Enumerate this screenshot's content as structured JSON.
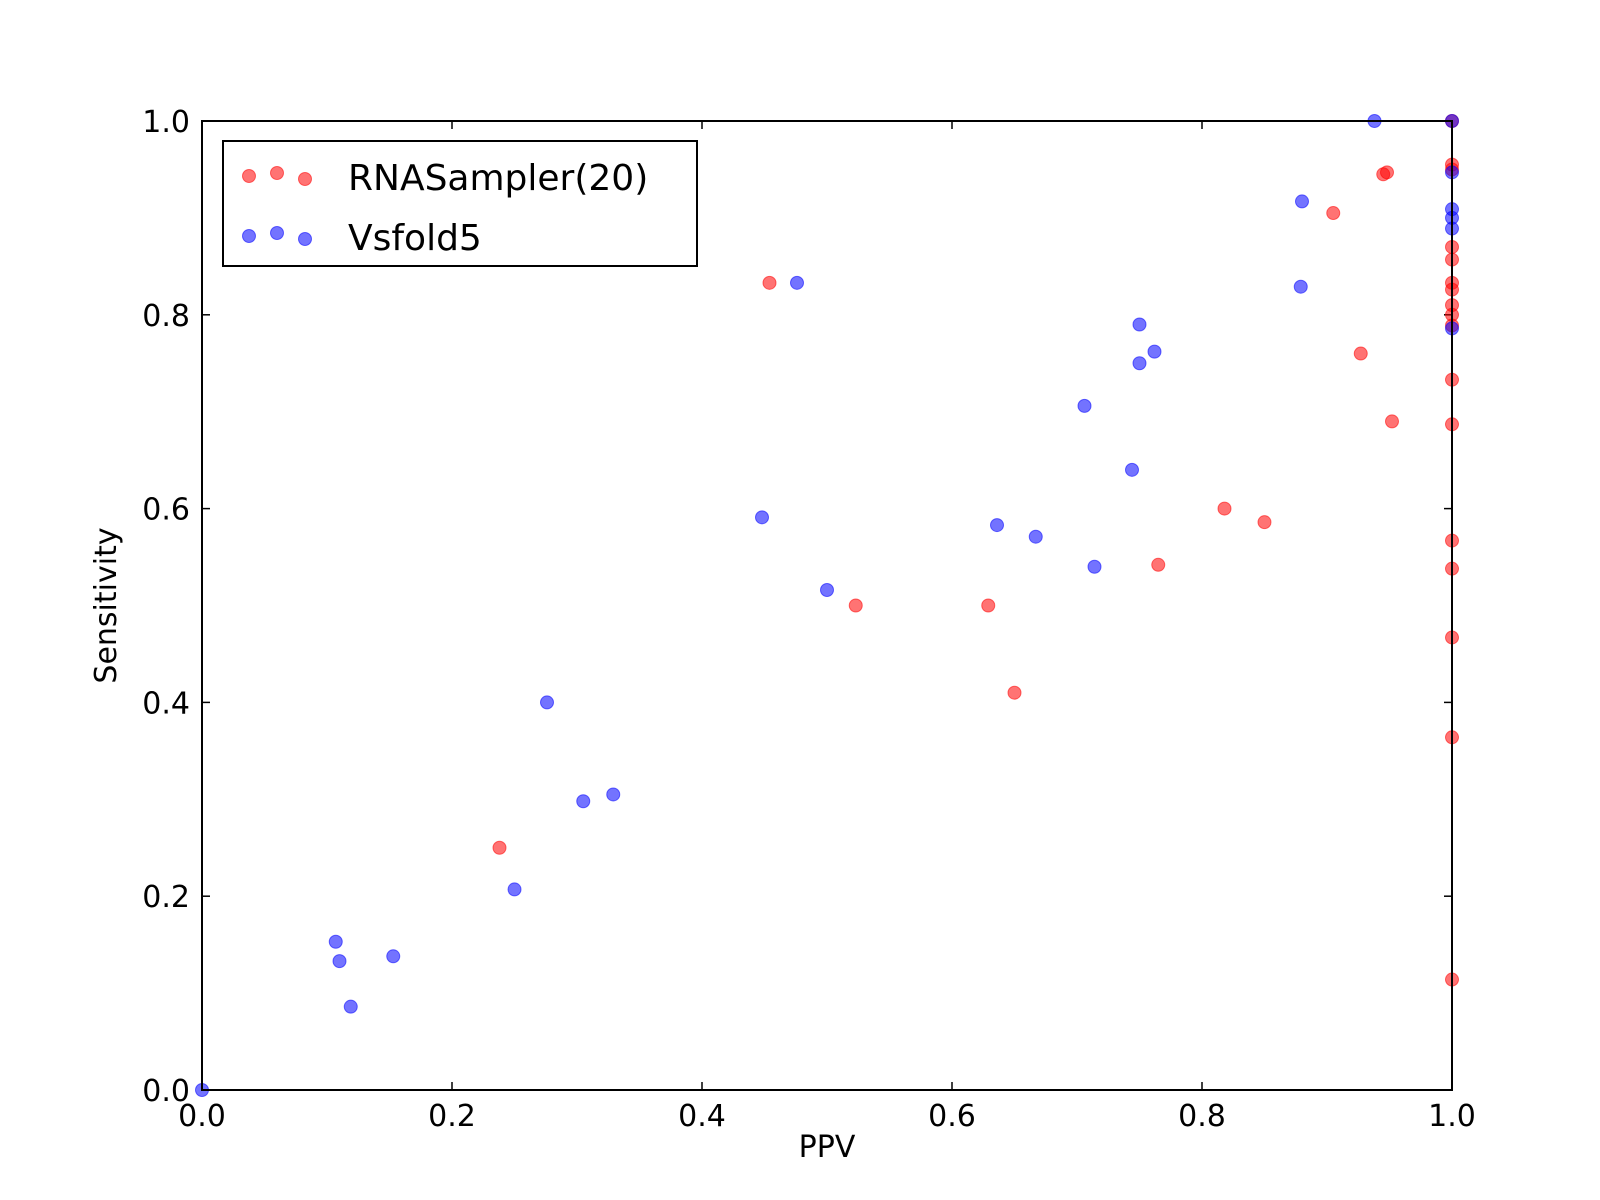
{
  "chart_data": {
    "type": "scatter",
    "xlabel": "PPV",
    "ylabel": "Sensitivity",
    "xlim": [
      0,
      1
    ],
    "ylim": [
      0,
      1
    ],
    "x_ticks": [
      "0.0",
      "0.2",
      "0.4",
      "0.6",
      "0.8",
      "1.0"
    ],
    "y_ticks": [
      "0.0",
      "0.2",
      "0.4",
      "0.6",
      "0.8",
      "1.0"
    ],
    "grid": false,
    "legend_position": "top-left",
    "series": [
      {
        "name": "RNASampler(20)",
        "color": "#ff0000",
        "points": [
          [
            0.238,
            0.25
          ],
          [
            0.454,
            0.833
          ],
          [
            0.523,
            0.5
          ],
          [
            0.629,
            0.5
          ],
          [
            0.65,
            0.41
          ],
          [
            0.765,
            0.542
          ],
          [
            0.818,
            0.6
          ],
          [
            0.85,
            0.586
          ],
          [
            0.905,
            0.905
          ],
          [
            0.927,
            0.76
          ],
          [
            0.945,
            0.945
          ],
          [
            0.948,
            0.947
          ],
          [
            0.952,
            0.69
          ],
          [
            1.0,
            0.955
          ],
          [
            1.0,
            0.95
          ],
          [
            1.0,
            0.87
          ],
          [
            1.0,
            0.857
          ],
          [
            1.0,
            0.833
          ],
          [
            1.0,
            0.826
          ],
          [
            1.0,
            0.81
          ],
          [
            1.0,
            0.8
          ],
          [
            1.0,
            0.789
          ],
          [
            1.0,
            0.733
          ],
          [
            1.0,
            0.687
          ],
          [
            1.0,
            0.567
          ],
          [
            1.0,
            0.538
          ],
          [
            1.0,
            0.467
          ],
          [
            1.0,
            0.364
          ],
          [
            1.0,
            0.114
          ],
          [
            1.0,
            1.0
          ]
        ]
      },
      {
        "name": "Vsfold5",
        "color": "#0000ff",
        "points": [
          [
            0.0,
            0.0
          ],
          [
            0.107,
            0.153
          ],
          [
            0.11,
            0.133
          ],
          [
            0.119,
            0.086
          ],
          [
            0.153,
            0.138
          ],
          [
            0.25,
            0.207
          ],
          [
            0.276,
            0.4
          ],
          [
            0.305,
            0.298
          ],
          [
            0.329,
            0.305
          ],
          [
            0.448,
            0.591
          ],
          [
            0.476,
            0.833
          ],
          [
            0.5,
            0.516
          ],
          [
            0.636,
            0.583
          ],
          [
            0.667,
            0.571
          ],
          [
            0.706,
            0.706
          ],
          [
            0.714,
            0.54
          ],
          [
            0.744,
            0.64
          ],
          [
            0.75,
            0.79
          ],
          [
            0.75,
            0.75
          ],
          [
            0.762,
            0.762
          ],
          [
            0.879,
            0.829
          ],
          [
            0.88,
            0.917
          ],
          [
            0.938,
            1.0
          ],
          [
            1.0,
            0.947
          ],
          [
            1.0,
            0.909
          ],
          [
            1.0,
            0.9
          ],
          [
            1.0,
            0.889
          ],
          [
            1.0,
            0.786
          ],
          [
            1.0,
            1.0
          ]
        ]
      }
    ]
  }
}
